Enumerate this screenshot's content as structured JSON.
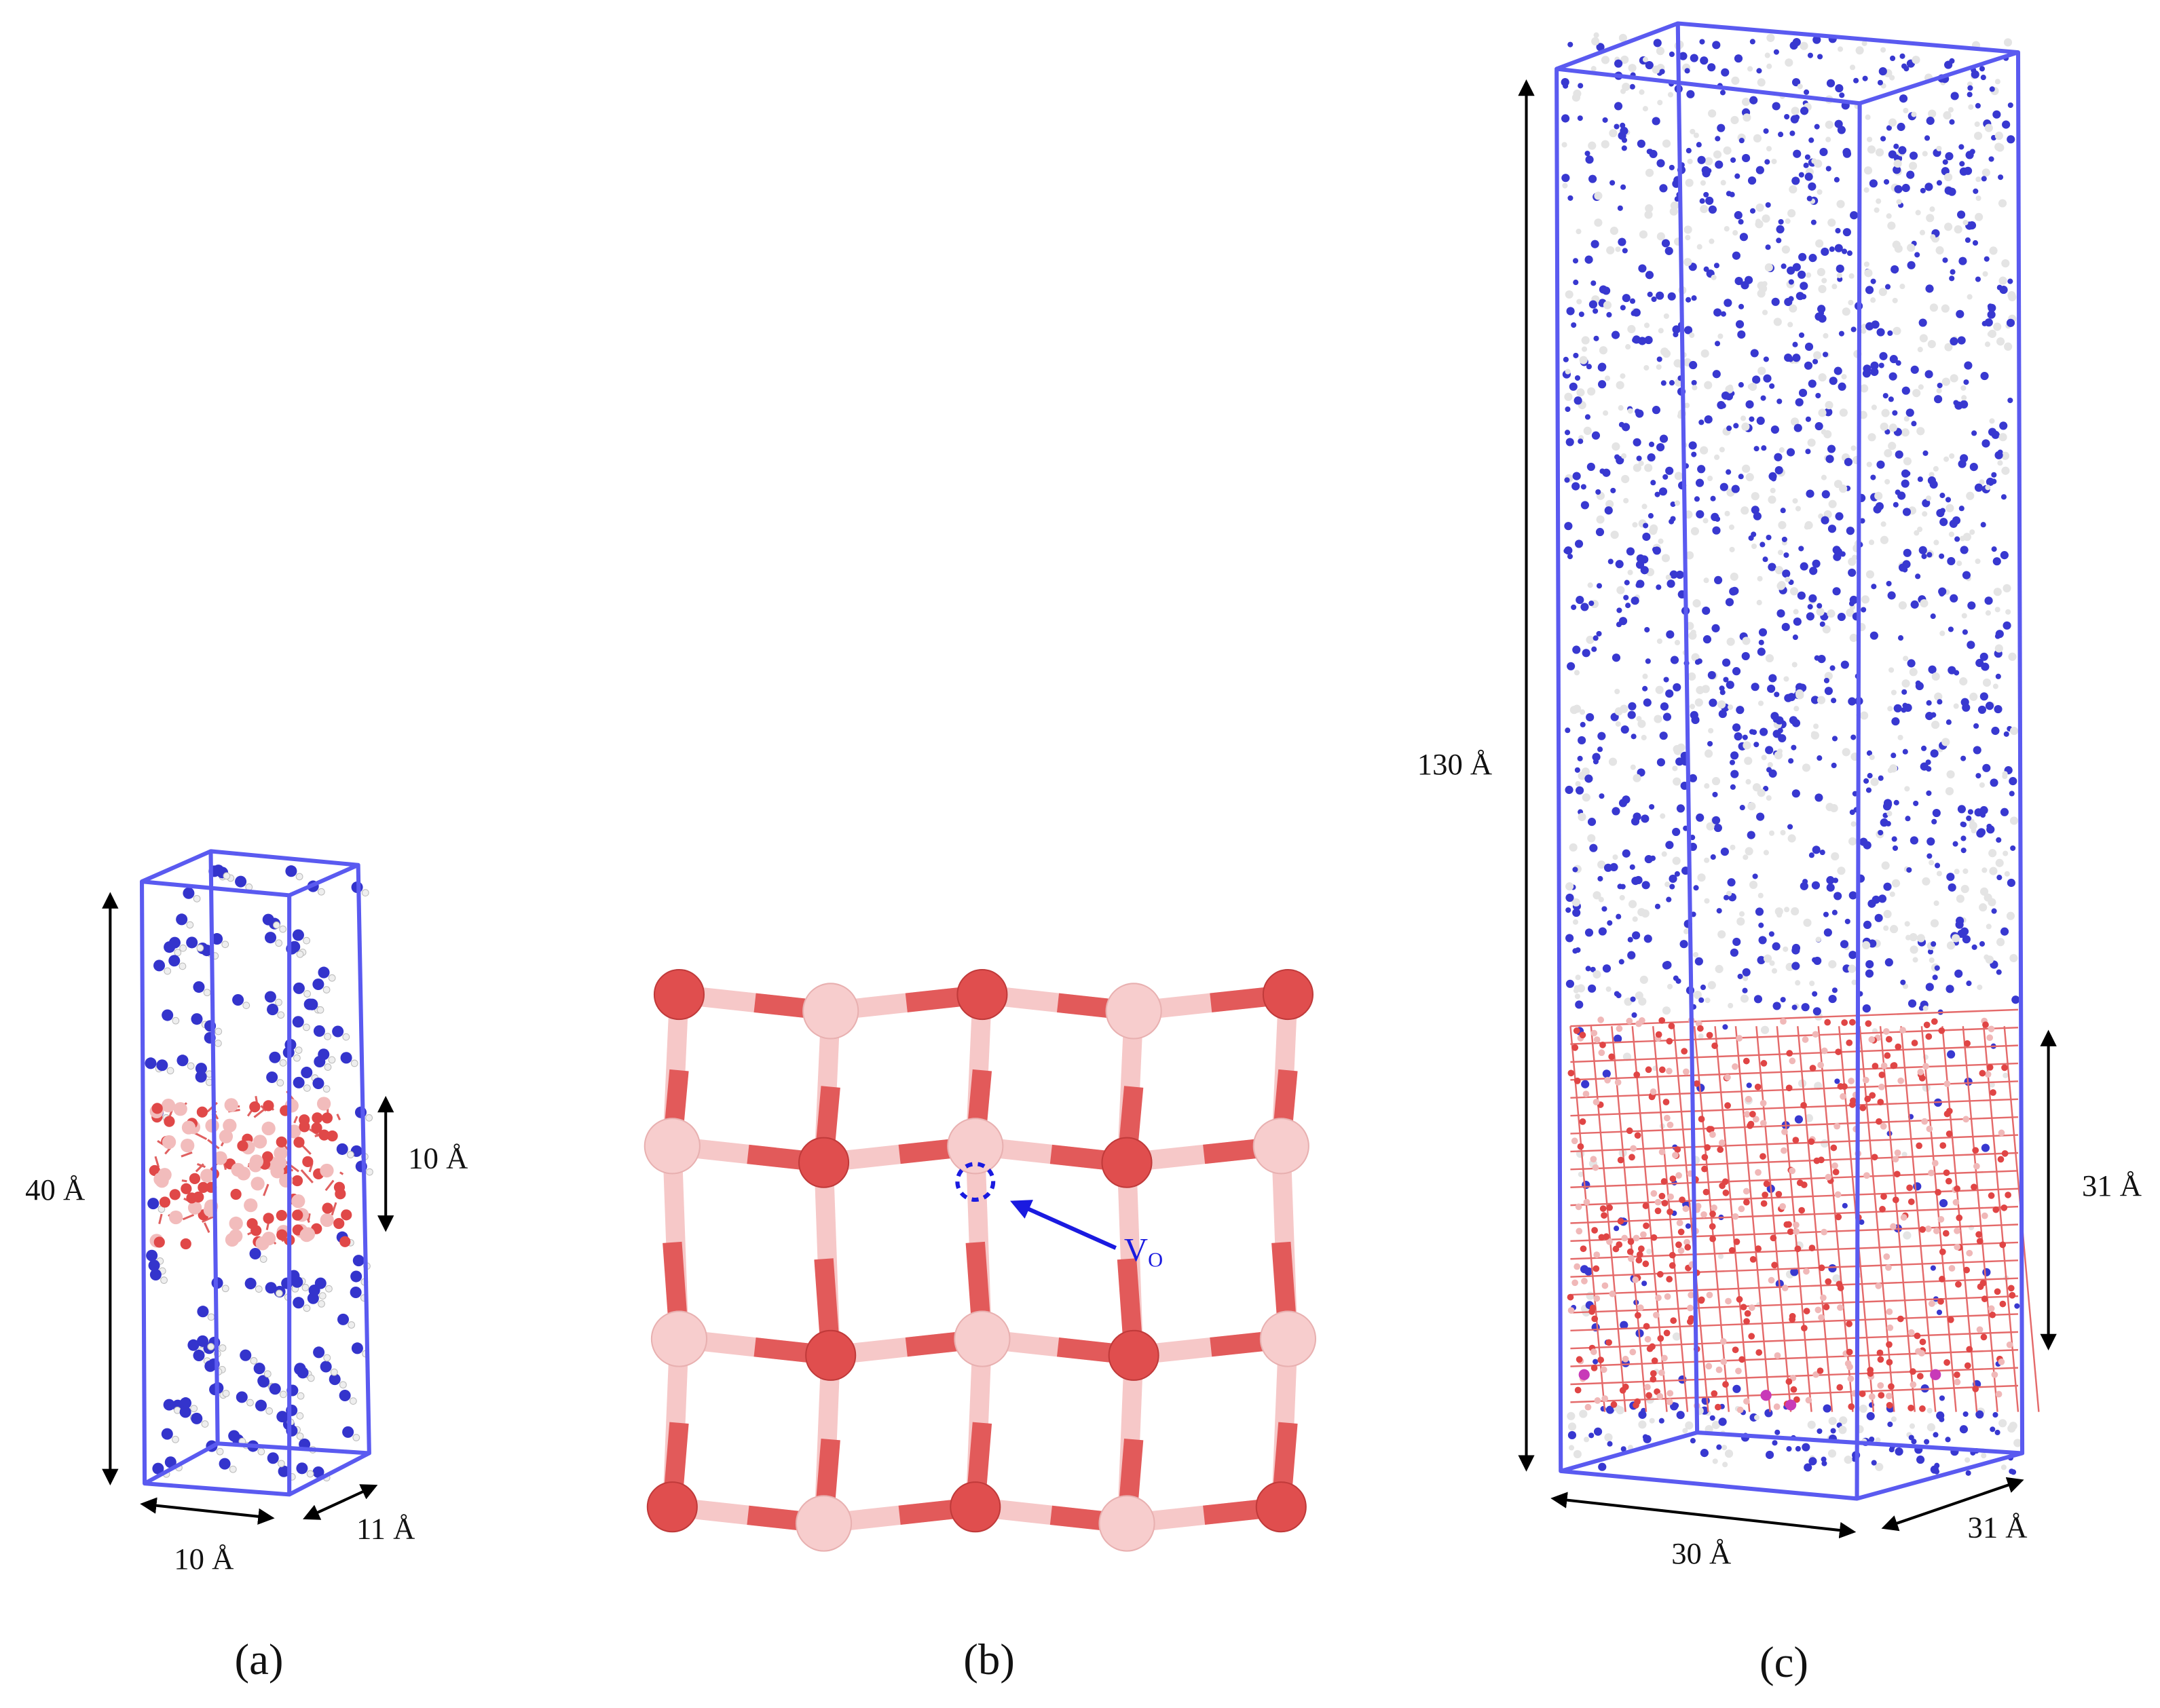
{
  "panels": [
    {
      "label": "(a)",
      "height": "40 Å",
      "slab_height": "10 Å",
      "width": "10 Å",
      "depth": "11 Å"
    },
    {
      "label": "(b)",
      "vacancy_label": "V",
      "vacancy_subscript": "O"
    },
    {
      "label": "(c)",
      "height": "130 Å",
      "slab_height": "31 Å",
      "width": "30 Å",
      "depth": "31 Å"
    }
  ]
}
